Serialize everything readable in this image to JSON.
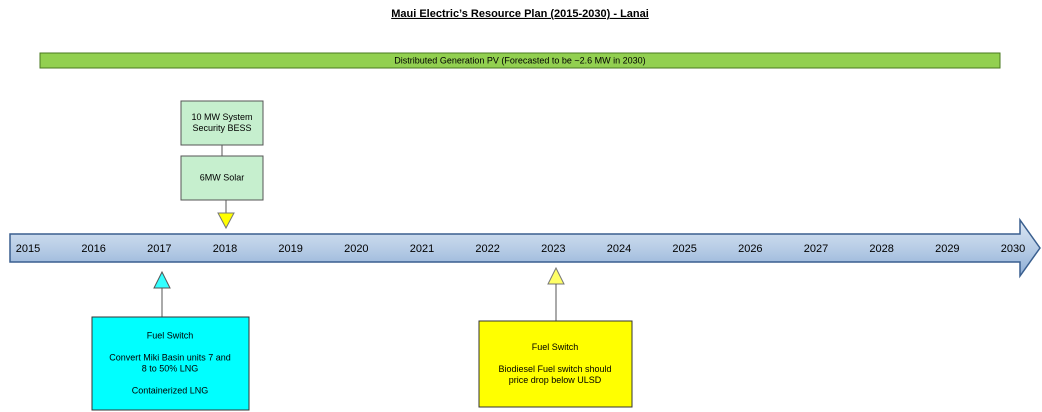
{
  "title": "Maui Electric’s Resource Plan (2015-2030) - Lanai",
  "banner": "Distributed Generation PV (Forecasted to be ~2.6 MW in 2030)",
  "years": [
    "2015",
    "2016",
    "2017",
    "2018",
    "2019",
    "2020",
    "2021",
    "2022",
    "2023",
    "2024",
    "2025",
    "2026",
    "2027",
    "2028",
    "2029",
    "2030"
  ],
  "top_boxes": [
    {
      "lines": [
        "10 MW System",
        "Security BESS"
      ]
    },
    {
      "lines": [
        "6MW Solar"
      ]
    }
  ],
  "bottom_boxes": [
    {
      "lines": [
        "Fuel Switch",
        "",
        "Convert Miki Basin units 7 and",
        "8 to 50% LNG",
        "",
        "Containerized LNG"
      ]
    },
    {
      "lines": [
        "Fuel Switch",
        "",
        "Biodiesel Fuel switch should",
        "price drop below ULSD"
      ]
    }
  ]
}
